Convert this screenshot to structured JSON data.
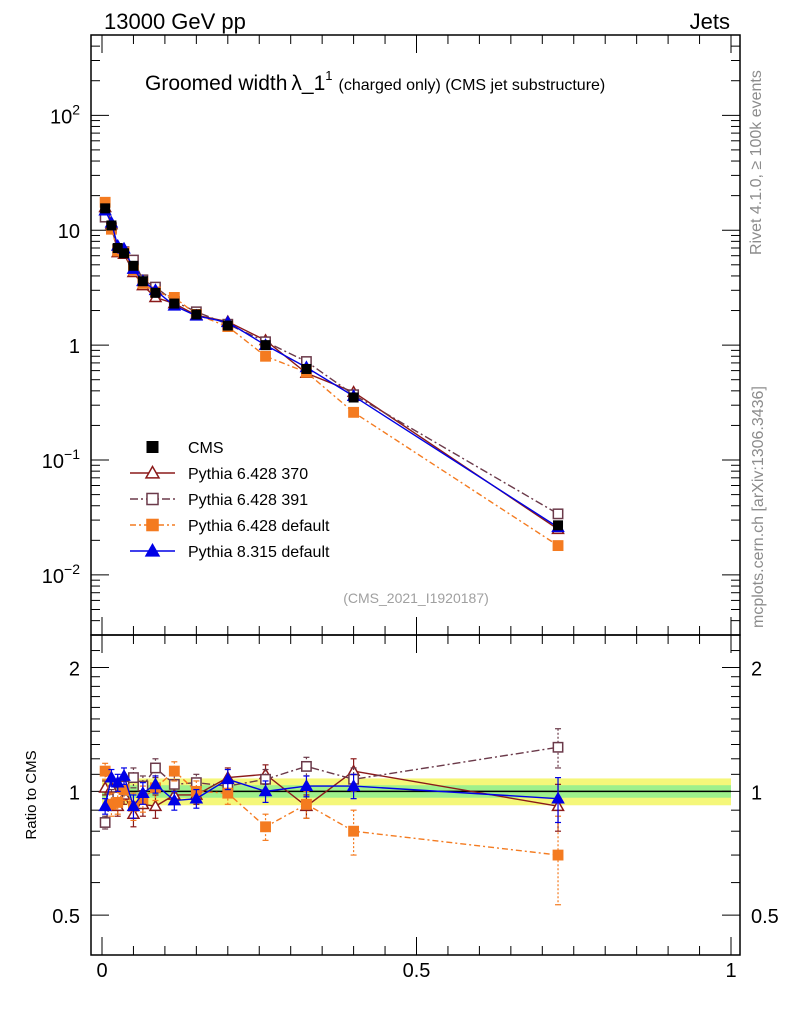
{
  "header": {
    "left": "13000 GeV pp",
    "right": "Jets"
  },
  "title": {
    "main": "Groomed width",
    "symbol": "λ_1",
    "sup": "1",
    "sub": "(charged only) (CMS jet substructure)"
  },
  "side_labels": {
    "rivet": "Rivet 4.1.0, ≥ 100k events",
    "mcplots": "mcplots.cern.ch [arXiv:1306.3436]"
  },
  "watermark": "(CMS_2021_I1920187)",
  "ratio_ylabel": "Ratio to CMS",
  "main_ticks": [
    {
      "base": "10",
      "exp": "2",
      "value": 100
    },
    {
      "base": "10",
      "exp": "",
      "value": 10
    },
    {
      "base": "1",
      "exp": "",
      "value": 1
    },
    {
      "base": "10",
      "exp": "−1",
      "value": 0.1
    },
    {
      "base": "10",
      "exp": "−2",
      "value": 0.01
    }
  ],
  "ratio_ticks": [
    {
      "label": "2",
      "value": 2
    },
    {
      "label": "1",
      "value": 1
    },
    {
      "label": "0.5",
      "value": 0.5
    }
  ],
  "x_ticks": [
    {
      "label": "0",
      "value": 0
    },
    {
      "label": "0.5",
      "value": 0.5
    },
    {
      "label": "1",
      "value": 1
    }
  ],
  "chart_data": {
    "type": "scatter",
    "xlim": [
      0,
      1
    ],
    "ylim_main": [
      0.003,
      500
    ],
    "ylim_ratio": [
      0.4,
      2.4
    ],
    "yscale": "log",
    "x": [
      0.005,
      0.015,
      0.025,
      0.035,
      0.05,
      0.065,
      0.085,
      0.115,
      0.15,
      0.2,
      0.26,
      0.325,
      0.4,
      0.725
    ],
    "data": {
      "name": "CMS",
      "values": [
        15.5,
        11.0,
        7.0,
        6.3,
        4.9,
        3.6,
        2.85,
        2.3,
        1.85,
        1.48,
        1.0,
        0.62,
        0.35,
        0.027
      ],
      "band_inner": 0.035,
      "band_outer": 0.075
    },
    "series": [
      {
        "name": "Pythia 6.428 370",
        "color": "#8b1a1a",
        "marker": "triangle-open",
        "dash": "",
        "values": [
          15.8,
          11.2,
          6.4,
          6.2,
          4.3,
          3.3,
          2.6,
          2.3,
          1.82,
          1.6,
          1.1,
          0.57,
          0.39,
          0.025
        ],
        "ratio": [
          1.02,
          1.02,
          0.92,
          0.98,
          0.88,
          0.93,
          0.92,
          0.98,
          0.98,
          1.08,
          1.1,
          0.92,
          1.12,
          0.92
        ],
        "ratio_err": [
          0.04,
          0.05,
          0.05,
          0.05,
          0.06,
          0.06,
          0.06,
          0.05,
          0.05,
          0.06,
          0.06,
          0.06,
          0.08,
          0.12
        ]
      },
      {
        "name": "Pythia 6.428 391",
        "color": "#6b3a4a",
        "marker": "square-open",
        "dash": "8,3,2,3",
        "values": [
          13.0,
          10.5,
          6.8,
          6.5,
          5.5,
          3.7,
          3.2,
          2.4,
          1.95,
          1.52,
          1.07,
          0.72,
          0.37,
          0.034
        ],
        "ratio": [
          0.84,
          0.96,
          0.97,
          1.03,
          1.08,
          1.03,
          1.14,
          1.04,
          1.05,
          1.03,
          1.07,
          1.15,
          1.07,
          1.28
        ],
        "ratio_err": [
          0.03,
          0.05,
          0.05,
          0.05,
          0.06,
          0.06,
          0.06,
          0.05,
          0.05,
          0.05,
          0.06,
          0.06,
          0.07,
          0.14
        ]
      },
      {
        "name": "Pythia 6.428 default",
        "color": "#f47b20",
        "marker": "square-filled",
        "dash": "6,3,2,3",
        "values": [
          17.5,
          10.2,
          6.6,
          6.4,
          4.5,
          3.45,
          2.9,
          2.6,
          1.85,
          1.45,
          0.8,
          0.58,
          0.26,
          0.018
        ],
        "ratio": [
          1.12,
          0.93,
          0.94,
          1.01,
          0.92,
          0.96,
          1.02,
          1.12,
          1.0,
          0.99,
          0.82,
          0.93,
          0.8,
          0.7
        ],
        "ratio_err": [
          0.05,
          0.06,
          0.06,
          0.06,
          0.07,
          0.07,
          0.07,
          0.06,
          0.06,
          0.06,
          0.06,
          0.07,
          0.1,
          0.17
        ]
      },
      {
        "name": "Pythia 8.315 default",
        "color": "#0000e6",
        "marker": "triangle-filled",
        "dash": "",
        "values": [
          14.8,
          11.6,
          7.3,
          6.9,
          4.6,
          3.6,
          3.0,
          2.2,
          1.8,
          1.58,
          1.0,
          0.64,
          0.36,
          0.026
        ],
        "ratio": [
          0.92,
          1.08,
          1.05,
          1.09,
          0.92,
          0.99,
          1.04,
          0.95,
          0.96,
          1.07,
          1.0,
          1.03,
          1.03,
          0.96
        ],
        "ratio_err": [
          0.04,
          0.05,
          0.05,
          0.05,
          0.06,
          0.06,
          0.05,
          0.05,
          0.05,
          0.06,
          0.06,
          0.06,
          0.07,
          0.12
        ]
      }
    ]
  }
}
